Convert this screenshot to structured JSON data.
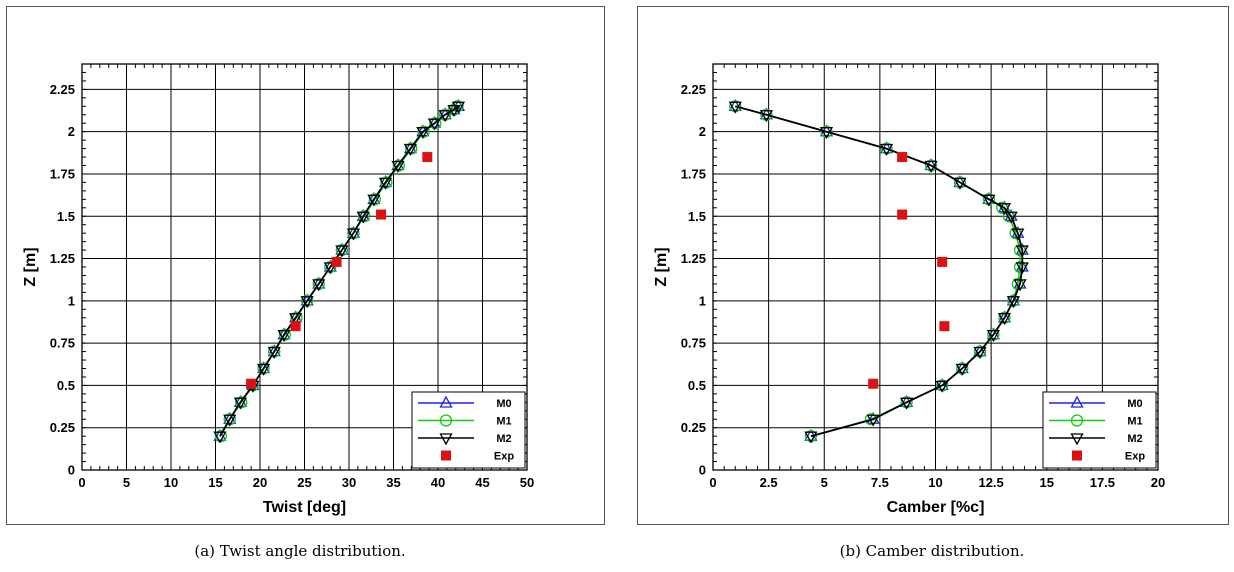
{
  "chart_data": [
    {
      "type": "line",
      "xlabel": "Twist [deg]",
      "ylabel": "Z [m]",
      "xlim": [
        0,
        50
      ],
      "ylim": [
        0,
        2.4
      ],
      "xticks": [
        "0",
        "5",
        "10",
        "15",
        "20",
        "25",
        "30",
        "35",
        "40",
        "45",
        "50"
      ],
      "xtick_values": [
        0,
        5,
        10,
        15,
        20,
        25,
        30,
        35,
        40,
        45,
        50
      ],
      "yticks": [
        "0",
        "0.25",
        "0.5",
        "0.75",
        "1",
        "1.25",
        "1.5",
        "1.75",
        "2",
        "2.25"
      ],
      "ytick_values": [
        0,
        0.25,
        0.5,
        0.75,
        1,
        1.25,
        1.5,
        1.75,
        2,
        2.25
      ],
      "grid": true,
      "legend_position": "bottom-right",
      "caption": "(a)  Twist angle distribution.",
      "series": [
        {
          "name": "M0",
          "color": "#2222ee",
          "marker": "triangle-up",
          "x": [
            15.5,
            16.6,
            17.8,
            19.2,
            20.4,
            21.6,
            22.7,
            24.0,
            25.3,
            26.6,
            27.9,
            29.2,
            30.5,
            31.6,
            32.8,
            34.1,
            35.5,
            36.9,
            38.3,
            39.6,
            40.8,
            41.8,
            42.3
          ],
          "y": [
            0.2,
            0.3,
            0.4,
            0.5,
            0.6,
            0.7,
            0.8,
            0.9,
            1.0,
            1.1,
            1.2,
            1.3,
            1.4,
            1.5,
            1.6,
            1.7,
            1.8,
            1.9,
            2.0,
            2.05,
            2.1,
            2.13,
            2.15
          ]
        },
        {
          "name": "M1",
          "color": "#11cc11",
          "marker": "circle",
          "x": [
            15.6,
            16.6,
            17.9,
            19.2,
            20.4,
            21.6,
            22.8,
            24.1,
            25.3,
            26.6,
            27.9,
            29.2,
            30.5,
            31.7,
            32.9,
            34.2,
            35.6,
            37.0,
            38.4,
            39.7,
            40.8,
            41.8,
            42.2
          ],
          "y": [
            0.2,
            0.3,
            0.4,
            0.5,
            0.6,
            0.7,
            0.8,
            0.9,
            1.0,
            1.1,
            1.2,
            1.3,
            1.4,
            1.5,
            1.6,
            1.7,
            1.8,
            1.9,
            2.0,
            2.05,
            2.1,
            2.13,
            2.15
          ]
        },
        {
          "name": "M2",
          "color": "#000000",
          "marker": "triangle-down",
          "x": [
            15.5,
            16.6,
            17.8,
            19.2,
            20.4,
            21.6,
            22.7,
            24.0,
            25.3,
            26.6,
            27.9,
            29.2,
            30.5,
            31.6,
            32.8,
            34.1,
            35.5,
            36.9,
            38.3,
            39.6,
            40.8,
            41.8,
            42.3
          ],
          "y": [
            0.2,
            0.3,
            0.4,
            0.5,
            0.6,
            0.7,
            0.8,
            0.9,
            1.0,
            1.1,
            1.2,
            1.3,
            1.4,
            1.5,
            1.6,
            1.7,
            1.8,
            1.9,
            2.0,
            2.05,
            2.1,
            2.13,
            2.15
          ]
        },
        {
          "name": "Exp",
          "color": "#dd1111",
          "marker": "square",
          "line": false,
          "x": [
            19.0,
            24.0,
            28.6,
            33.6,
            38.8
          ],
          "y": [
            0.51,
            0.85,
            1.23,
            1.51,
            1.85
          ]
        }
      ]
    },
    {
      "type": "line",
      "xlabel": "Camber [%c]",
      "ylabel": "Z [m]",
      "xlim": [
        0,
        20
      ],
      "ylim": [
        0,
        2.4
      ],
      "xticks": [
        "0",
        "2.5",
        "5",
        "7.5",
        "10",
        "12.5",
        "15",
        "17.5",
        "20"
      ],
      "xtick_values": [
        0,
        2.5,
        5,
        7.5,
        10,
        12.5,
        15,
        17.5,
        20
      ],
      "yticks": [
        "0",
        "0.25",
        "0.5",
        "0.75",
        "1",
        "1.25",
        "1.5",
        "1.75",
        "2",
        "2.25"
      ],
      "ytick_values": [
        0,
        0.25,
        0.5,
        0.75,
        1,
        1.25,
        1.5,
        1.75,
        2,
        2.25
      ],
      "grid": true,
      "legend_position": "bottom-right",
      "caption": "(b)  Camber distribution.",
      "series": [
        {
          "name": "M0",
          "color": "#2222ee",
          "marker": "triangle-up",
          "x": [
            4.4,
            7.2,
            8.7,
            10.3,
            11.2,
            12.0,
            12.6,
            13.1,
            13.5,
            13.8,
            13.9,
            13.9,
            13.7,
            13.4,
            13.1,
            12.4,
            11.1,
            9.8,
            7.8,
            5.1,
            2.4,
            1.0
          ],
          "y": [
            0.2,
            0.3,
            0.4,
            0.5,
            0.6,
            0.7,
            0.8,
            0.9,
            1.0,
            1.1,
            1.2,
            1.3,
            1.4,
            1.5,
            1.55,
            1.6,
            1.7,
            1.8,
            1.9,
            2.0,
            2.1,
            2.15
          ]
        },
        {
          "name": "M1",
          "color": "#11cc11",
          "marker": "circle",
          "x": [
            4.4,
            7.1,
            8.7,
            10.3,
            11.2,
            12.0,
            12.6,
            13.1,
            13.5,
            13.7,
            13.8,
            13.8,
            13.6,
            13.3,
            13.0,
            12.4,
            11.1,
            9.8,
            7.8,
            5.1,
            2.4,
            1.0
          ],
          "y": [
            0.2,
            0.3,
            0.4,
            0.5,
            0.6,
            0.7,
            0.8,
            0.9,
            1.0,
            1.1,
            1.2,
            1.3,
            1.4,
            1.5,
            1.55,
            1.6,
            1.7,
            1.8,
            1.9,
            2.0,
            2.1,
            2.15
          ]
        },
        {
          "name": "M2",
          "color": "#000000",
          "marker": "triangle-down",
          "x": [
            4.4,
            7.2,
            8.7,
            10.3,
            11.2,
            12.0,
            12.6,
            13.1,
            13.5,
            13.8,
            13.9,
            13.9,
            13.7,
            13.4,
            13.1,
            12.4,
            11.1,
            9.8,
            7.8,
            5.1,
            2.4,
            1.0
          ],
          "y": [
            0.2,
            0.3,
            0.4,
            0.5,
            0.6,
            0.7,
            0.8,
            0.9,
            1.0,
            1.1,
            1.2,
            1.3,
            1.4,
            1.5,
            1.55,
            1.6,
            1.7,
            1.8,
            1.9,
            2.0,
            2.1,
            2.15
          ]
        },
        {
          "name": "Exp",
          "color": "#dd1111",
          "marker": "square",
          "line": false,
          "x": [
            7.2,
            10.4,
            10.3,
            8.5,
            8.5
          ],
          "y": [
            0.51,
            0.85,
            1.23,
            1.51,
            1.85
          ]
        }
      ]
    }
  ]
}
